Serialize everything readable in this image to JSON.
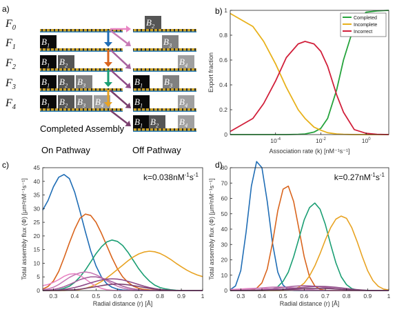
{
  "panel_a": {
    "label": "a)",
    "rows": [
      {
        "name_base": "F",
        "name_sub": "0",
        "on": [],
        "off": [
          {
            "base": "B",
            "sub": "2"
          }
        ]
      },
      {
        "name_base": "F",
        "name_sub": "1",
        "on": [
          {
            "base": "B",
            "sub": "1"
          }
        ],
        "off": [
          {
            "base": "B",
            "sub": "3"
          }
        ]
      },
      {
        "name_base": "F",
        "name_sub": "2",
        "on": [
          {
            "base": "B",
            "sub": "1"
          },
          {
            "base": "B",
            "sub": "2"
          }
        ],
        "off": [
          {
            "base": "B",
            "sub": "4"
          }
        ]
      },
      {
        "name_base": "F",
        "name_sub": "3",
        "on": [
          {
            "base": "B",
            "sub": "1"
          },
          {
            "base": "B",
            "sub": "2"
          },
          {
            "base": "B",
            "sub": "3"
          }
        ],
        "off": [
          {
            "base": "B",
            "sub": "1"
          },
          {
            "base": "B",
            "sub": "3"
          }
        ]
      },
      {
        "name_base": "F",
        "name_sub": "4",
        "on": [
          {
            "base": "B",
            "sub": "1"
          },
          {
            "base": "B",
            "sub": "2"
          },
          {
            "base": "B",
            "sub": "3"
          },
          {
            "base": "B",
            "sub": "4"
          }
        ],
        "off": [
          {
            "base": "B",
            "sub": "1"
          },
          {
            "base": "B",
            "sub": "4"
          }
        ]
      },
      {
        "name_base": "",
        "name_sub": "",
        "on": [],
        "off": [
          {
            "base": "B",
            "sub": "1"
          },
          {
            "base": "B",
            "sub": "2"
          },
          {
            "base": "B",
            "sub": "4"
          }
        ]
      }
    ],
    "completed_label": "Completed Assembly",
    "on_pathway_label": "On Pathway",
    "off_pathway_label": "Off Pathway",
    "block_colors": [
      "#0a0a0a",
      "#555555",
      "#808080",
      "#a0a0a0"
    ],
    "on_arrow_colors": [
      "#1f6db5",
      "#d9641c",
      "#1a9e73",
      "#e8a322"
    ],
    "off_arrow_colors": [
      "#e985c4",
      "#c77ab5",
      "#a8629f",
      "#8f4b87",
      "#7a3f6e"
    ]
  },
  "chart_data": [
    {
      "panel_label": "b)",
      "type": "line",
      "xscale": "log",
      "xlim": [
        1e-06,
        10
      ],
      "ylim": [
        0,
        1
      ],
      "xticks": [
        0.0001,
        0.01,
        1
      ],
      "xtick_labels": [
        {
          "base": "10",
          "exp": "-4"
        },
        {
          "base": "10",
          "exp": "-2"
        },
        {
          "base": "10",
          "exp": "0"
        }
      ],
      "yticks": [
        0,
        0.2,
        0.4,
        0.6,
        0.8,
        1
      ],
      "ytick_labels": [
        "0",
        "0.2",
        "0.4",
        "0.6",
        "0.8",
        "1"
      ],
      "xlabel": "Association rate (k) [nM⁻¹s⁻¹]",
      "ylabel": "Export fraction",
      "legend_position": "top-right",
      "x": [
        1e-06,
        1e-05,
        3e-05,
        0.0001,
        0.0003,
        0.001,
        0.002,
        0.005,
        0.01,
        0.02,
        0.05,
        0.1,
        0.3,
        1,
        3,
        10
      ],
      "series": [
        {
          "name": "Completed",
          "color": "#24a33b",
          "values": [
            0,
            0,
            0,
            0,
            0,
            0.002,
            0.005,
            0.02,
            0.05,
            0.13,
            0.36,
            0.6,
            0.88,
            0.985,
            0.995,
            1.0
          ]
        },
        {
          "name": "Incomplete",
          "color": "#e8b11a",
          "values": [
            0.975,
            0.87,
            0.75,
            0.57,
            0.38,
            0.2,
            0.13,
            0.06,
            0.035,
            0.015,
            0.005,
            0.002,
            0,
            0,
            0,
            0
          ]
        },
        {
          "name": "Incorrect",
          "color": "#d11f3a",
          "values": [
            0.025,
            0.13,
            0.25,
            0.43,
            0.62,
            0.73,
            0.75,
            0.73,
            0.67,
            0.55,
            0.32,
            0.18,
            0.04,
            0.01,
            0.002,
            0
          ]
        }
      ]
    },
    {
      "panel_label": "c)",
      "type": "line",
      "annotation": {
        "prefix": "k=0.038nM",
        "sup1": "-1",
        "mid": "s",
        "sup2": "-1"
      },
      "xlim": [
        0.25,
        1
      ],
      "ylim": [
        0,
        45
      ],
      "xticks": [
        0.3,
        0.4,
        0.5,
        0.6,
        0.7,
        0.8,
        0.9,
        1
      ],
      "xtick_labels": [
        "0.3",
        "0.4",
        "0.5",
        "0.6",
        "0.7",
        "0.8",
        "0.9",
        "1"
      ],
      "yticks": [
        0,
        5,
        10,
        15,
        20,
        25,
        30,
        35,
        40,
        45
      ],
      "ytick_labels": [
        "0",
        "5",
        "10",
        "15",
        "20",
        "25",
        "30",
        "35",
        "40",
        "45"
      ],
      "xlabel": "Radial distance (r) [Å]",
      "ylabel": "Total assembly flux (Φ) [μm²nM⁻¹s⁻¹]",
      "x": [
        0.25,
        0.275,
        0.3,
        0.325,
        0.35,
        0.375,
        0.4,
        0.425,
        0.45,
        0.475,
        0.5,
        0.525,
        0.55,
        0.575,
        0.6,
        0.625,
        0.65,
        0.675,
        0.7,
        0.725,
        0.75,
        0.775,
        0.8,
        0.825,
        0.85,
        0.875,
        0.9,
        0.925,
        0.95,
        0.975,
        1.0
      ],
      "series": [
        {
          "color": "#1f6db5",
          "values": [
            29.5,
            33,
            38,
            41.5,
            42.5,
            41,
            36,
            29,
            21.5,
            14.5,
            9,
            5,
            2.5,
            1.2,
            0.5,
            0.2,
            0.1,
            0,
            0,
            0,
            0,
            0,
            0,
            0,
            0,
            0,
            0,
            0,
            0,
            0,
            0
          ]
        },
        {
          "color": "#d9641c",
          "values": [
            0.5,
            1.5,
            3.5,
            7,
            12,
            17.5,
            22.5,
            26.5,
            28,
            27.5,
            25,
            21,
            16.5,
            12,
            8,
            5,
            3,
            1.6,
            0.8,
            0.4,
            0.2,
            0.1,
            0,
            0,
            0,
            0,
            0,
            0,
            0,
            0,
            0
          ]
        },
        {
          "color": "#1a9e73",
          "values": [
            0,
            0,
            0.1,
            0.3,
            0.8,
            1.6,
            3,
            5,
            7.5,
            10.5,
            13.5,
            16,
            17.8,
            18.5,
            18,
            16.5,
            14,
            11,
            8,
            5.5,
            3.5,
            2,
            1.1,
            0.6,
            0.3,
            0.1,
            0,
            0,
            0,
            0,
            0
          ]
        },
        {
          "color": "#e8a322",
          "values": [
            0,
            0,
            0,
            0,
            0,
            0.1,
            0.2,
            0.4,
            0.8,
            1.4,
            2.2,
            3.3,
            4.6,
            6.1,
            7.7,
            9.3,
            10.9,
            12.3,
            13.4,
            14.1,
            14.4,
            14.2,
            13.6,
            12.6,
            11.4,
            10,
            8.7,
            7.5,
            6.5,
            5.7,
            5.1
          ]
        },
        {
          "color": "#e985c4",
          "values": [
            1.8,
            2.2,
            3,
            4,
            5.2,
            6,
            6.2,
            5.5,
            4.2,
            2.8,
            1.6,
            0.8,
            0.3,
            0.1,
            0,
            0,
            0,
            0,
            0,
            0,
            0,
            0,
            0,
            0,
            0,
            0,
            0,
            0,
            0,
            0,
            0
          ]
        },
        {
          "color": "#c77ab5",
          "values": [
            0.3,
            0.6,
            1.2,
            2.2,
            3.5,
            4.8,
            5.8,
            6.5,
            6.8,
            6.5,
            5.8,
            4.8,
            3.6,
            2.5,
            1.6,
            0.9,
            0.5,
            0.2,
            0.1,
            0,
            0,
            0,
            0,
            0,
            0,
            0,
            0,
            0,
            0,
            0,
            0
          ]
        },
        {
          "color": "#a8629f",
          "values": [
            0.1,
            0.2,
            0.4,
            0.8,
            1.4,
            2.2,
            3.1,
            4,
            4.6,
            5,
            5,
            4.6,
            4,
            3.2,
            2.4,
            1.6,
            1,
            0.6,
            0.3,
            0.1,
            0,
            0,
            0,
            0,
            0,
            0,
            0,
            0,
            0,
            0,
            0
          ]
        },
        {
          "color": "#8f4b87",
          "values": [
            0,
            0,
            0.1,
            0.2,
            0.4,
            0.7,
            1.1,
            1.6,
            2.2,
            2.8,
            3.4,
            3.9,
            4.2,
            4.3,
            4.2,
            3.9,
            3.4,
            2.8,
            2.2,
            1.6,
            1.1,
            0.7,
            0.4,
            0.2,
            0.1,
            0,
            0,
            0,
            0,
            0,
            0
          ]
        },
        {
          "color": "#7a3f6e",
          "values": [
            0,
            0,
            0,
            0,
            0.1,
            0.2,
            0.3,
            0.5,
            0.8,
            1.1,
            1.4,
            1.8,
            2.1,
            2.3,
            2.4,
            2.3,
            2.1,
            1.8,
            1.5,
            1.1,
            0.8,
            0.5,
            0.3,
            0.2,
            0.1,
            0,
            0,
            0,
            0,
            0,
            0
          ]
        }
      ]
    },
    {
      "panel_label": "d)",
      "type": "line",
      "annotation": {
        "prefix": "k=0.27nM",
        "sup1": "-1",
        "mid": "s",
        "sup2": "-1"
      },
      "xlim": [
        0.25,
        1
      ],
      "ylim": [
        0,
        80
      ],
      "xticks": [
        0.3,
        0.4,
        0.5,
        0.6,
        0.7,
        0.8,
        0.9,
        1
      ],
      "xtick_labels": [
        "0.3",
        "0.4",
        "0.5",
        "0.6",
        "0.7",
        "0.8",
        "0.9",
        "1"
      ],
      "yticks": [
        0,
        10,
        20,
        30,
        40,
        50,
        60,
        70,
        80
      ],
      "ytick_labels": [
        "0",
        "10",
        "20",
        "30",
        "40",
        "50",
        "60",
        "70",
        "80"
      ],
      "xlabel": "Radial distance (r) [Å]",
      "ylabel": "Total assembly flux (Φ) [μm²nM⁻¹s⁻¹]",
      "x": [
        0.25,
        0.275,
        0.3,
        0.325,
        0.35,
        0.375,
        0.4,
        0.425,
        0.45,
        0.475,
        0.5,
        0.525,
        0.55,
        0.575,
        0.6,
        0.625,
        0.65,
        0.675,
        0.7,
        0.725,
        0.75,
        0.775,
        0.8,
        0.825,
        0.85,
        0.875,
        0.9,
        0.925,
        0.95,
        0.975,
        1.0
      ],
      "series": [
        {
          "color": "#1f6db5",
          "values": [
            0.5,
            3,
            13,
            38,
            68,
            84,
            80,
            58,
            31,
            12,
            3.5,
            0.8,
            0.1,
            0,
            0,
            0,
            0,
            0,
            0,
            0,
            0,
            0,
            0,
            0,
            0,
            0,
            0,
            0,
            0,
            0,
            0
          ]
        },
        {
          "color": "#d9641c",
          "values": [
            0,
            0,
            0,
            0,
            0.3,
            1.5,
            5,
            14,
            31,
            52,
            66,
            68,
            58,
            40,
            22,
            9,
            3,
            0.8,
            0.2,
            0,
            0,
            0,
            0,
            0,
            0,
            0,
            0,
            0,
            0,
            0,
            0
          ]
        },
        {
          "color": "#1a9e73",
          "values": [
            0,
            0,
            0,
            0,
            0,
            0,
            0,
            0.2,
            0.8,
            2.5,
            6,
            12,
            22,
            34,
            46,
            54,
            57,
            53,
            43,
            30,
            18,
            9,
            3.8,
            1.3,
            0.4,
            0.1,
            0,
            0,
            0,
            0,
            0
          ]
        },
        {
          "color": "#e8a322",
          "values": [
            0,
            0,
            0,
            0,
            0,
            0,
            0,
            0,
            0,
            0,
            0.1,
            0.3,
            0.9,
            2.2,
            4.8,
            9.5,
            16,
            24,
            33,
            41,
            46.5,
            48.5,
            47,
            41,
            32,
            22,
            13,
            6.5,
            2.8,
            1,
            0.3
          ]
        },
        {
          "color": "#e985c4",
          "values": [
            0.6,
            0.8,
            1,
            1.2,
            1.4,
            1.5,
            1.4,
            1.2,
            1,
            0.8,
            0.6,
            0.4,
            0.3,
            0.2,
            0.1,
            0,
            0,
            0,
            0,
            0,
            0,
            0,
            0,
            0,
            0,
            0,
            0,
            0,
            0,
            0,
            0
          ]
        },
        {
          "color": "#c77ab5",
          "values": [
            0.1,
            0.2,
            0.4,
            0.7,
            1,
            1.4,
            1.7,
            2,
            2.2,
            2.3,
            2.2,
            2,
            1.7,
            1.3,
            1,
            0.7,
            0.4,
            0.2,
            0.1,
            0,
            0,
            0,
            0,
            0,
            0,
            0,
            0,
            0,
            0,
            0,
            0
          ]
        },
        {
          "color": "#a8629f",
          "values": [
            0,
            0,
            0,
            0.1,
            0.2,
            0.4,
            0.6,
            0.9,
            1.2,
            1.6,
            2,
            2.4,
            2.8,
            3,
            3.1,
            3,
            2.8,
            2.4,
            2,
            1.6,
            1.2,
            0.8,
            0.5,
            0.3,
            0.2,
            0.1,
            0,
            0,
            0,
            0,
            0
          ]
        },
        {
          "color": "#8f4b87",
          "values": [
            0,
            0,
            0,
            0,
            0,
            0.1,
            0.2,
            0.3,
            0.5,
            0.7,
            0.9,
            1.2,
            1.5,
            1.8,
            2.1,
            2.4,
            2.6,
            2.7,
            2.6,
            2.4,
            2.1,
            1.7,
            1.3,
            0.9,
            0.6,
            0.3,
            0.1,
            0,
            0,
            0,
            0
          ]
        },
        {
          "color": "#7a3f6e",
          "values": [
            0,
            0,
            0,
            0,
            0,
            0,
            0,
            0.1,
            0.2,
            0.3,
            0.4,
            0.6,
            0.8,
            1,
            1.2,
            1.3,
            1.4,
            1.4,
            1.3,
            1.2,
            1,
            0.8,
            0.6,
            0.4,
            0.3,
            0.2,
            0.1,
            0,
            0,
            0,
            0
          ]
        }
      ]
    }
  ]
}
